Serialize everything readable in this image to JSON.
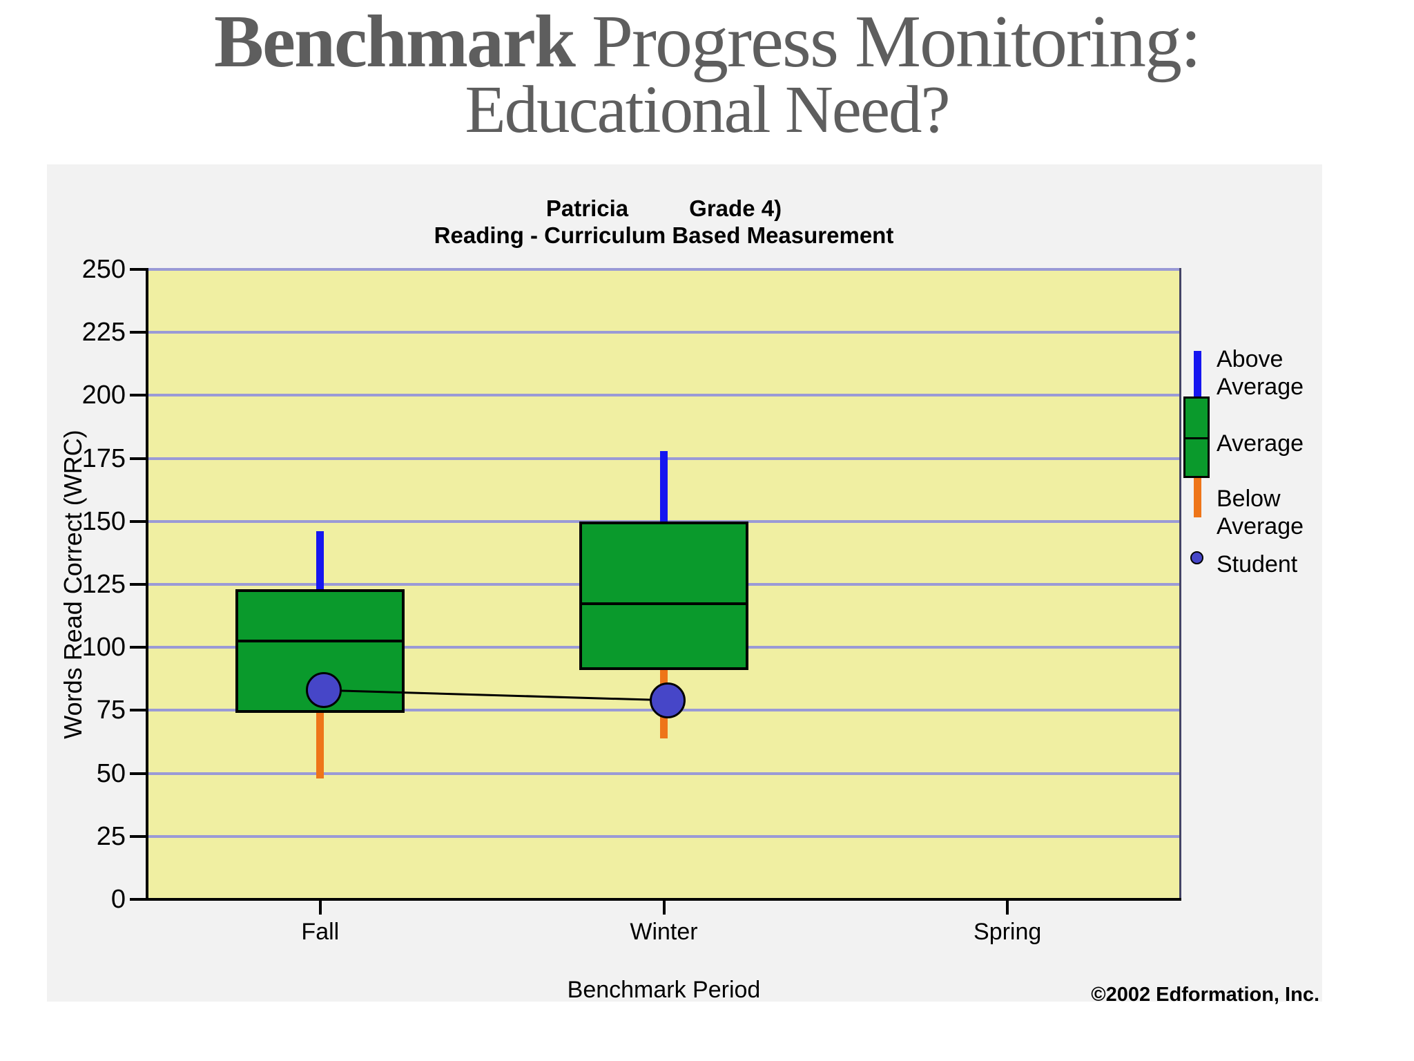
{
  "slide": {
    "title_bold": "Benchmark",
    "title_rest": " Progress Monitoring:",
    "title_line2": "Educational Need?"
  },
  "chart": {
    "student_name": "Patricia",
    "grade_label": "Grade 4)",
    "subtitle": "Reading - Curriculum Based Measurement",
    "y_axis_label": "Words Read Correct (WRC)",
    "x_axis_label": "Benchmark Period",
    "copyright": "©2002 Edformation, Inc."
  },
  "chart_data": {
    "type": "boxplot",
    "title": "Patricia  Grade 4) / Reading - Curriculum Based Measurement",
    "xlabel": "Benchmark Period",
    "ylabel": "Words Read Correct (WRC)",
    "ylim": [
      0,
      250
    ],
    "y_ticks": [
      0,
      25,
      50,
      75,
      100,
      125,
      150,
      175,
      200,
      225,
      250
    ],
    "grid": true,
    "legend_position": "right",
    "categories": [
      "Fall",
      "Winter",
      "Spring"
    ],
    "series": [
      {
        "category": "Fall",
        "q1": 74,
        "median": 103,
        "q3": 123,
        "above_avg_top": 146,
        "below_avg_bottom": 48,
        "student": 83
      },
      {
        "category": "Winter",
        "q1": 91,
        "median": 118,
        "q3": 150,
        "above_avg_top": 178,
        "below_avg_bottom": 64,
        "student": 79
      },
      {
        "category": "Spring",
        "q1": null,
        "median": null,
        "q3": null,
        "above_avg_top": null,
        "below_avg_bottom": null,
        "student": null
      }
    ],
    "legend": [
      "Above Average",
      "Average",
      "Below Average",
      "Student"
    ],
    "colors": {
      "above_average": "#1616f0",
      "average_box": "#0a9a2c",
      "below_average": "#ee7519",
      "student_point": "#4646c8",
      "plot_background": "#f0efa2",
      "gridline": "#9a9ad6",
      "panel_background": "#f2f2f2",
      "title_text": "#5e5e5e"
    }
  }
}
